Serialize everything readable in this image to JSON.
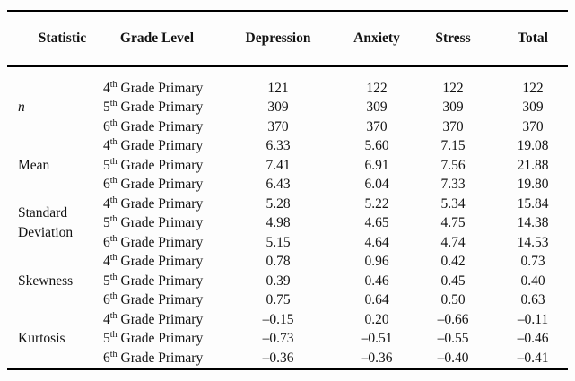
{
  "table": {
    "columns": {
      "statistic": "Statistic",
      "grade_level": "Grade Level",
      "depression": "Depression",
      "anxiety": "Anxiety",
      "stress": "Stress",
      "total": "Total"
    },
    "stat_labels": {
      "n": "n",
      "mean": "Mean",
      "sd": "Standard Deviation",
      "skewness": "Skewness",
      "kurtosis": "Kurtosis"
    },
    "grade_levels": [
      {
        "num": "4",
        "sup": "th",
        "rest": "Grade Primary"
      },
      {
        "num": "5",
        "sup": "th",
        "rest": "Grade Primary"
      },
      {
        "num": "6",
        "sup": "th",
        "rest": "Grade Primary"
      }
    ],
    "rows": [
      {
        "depression": "121",
        "anxiety": "122",
        "stress": "122",
        "total": "122"
      },
      {
        "depression": "309",
        "anxiety": "309",
        "stress": "309",
        "total": "309"
      },
      {
        "depression": "370",
        "anxiety": "370",
        "stress": "370",
        "total": "370"
      },
      {
        "depression": "6.33",
        "anxiety": "5.60",
        "stress": "7.15",
        "total": "19.08"
      },
      {
        "depression": "7.41",
        "anxiety": "6.91",
        "stress": "7.56",
        "total": "21.88"
      },
      {
        "depression": "6.43",
        "anxiety": "6.04",
        "stress": "7.33",
        "total": "19.80"
      },
      {
        "depression": "5.28",
        "anxiety": "5.22",
        "stress": "5.34",
        "total": "15.84"
      },
      {
        "depression": "4.98",
        "anxiety": "4.65",
        "stress": "4.75",
        "total": "14.38"
      },
      {
        "depression": "5.15",
        "anxiety": "4.64",
        "stress": "4.74",
        "total": "14.53"
      },
      {
        "depression": "0.78",
        "anxiety": "0.96",
        "stress": "0.42",
        "total": "0.73"
      },
      {
        "depression": "0.39",
        "anxiety": "0.46",
        "stress": "0.45",
        "total": "0.40"
      },
      {
        "depression": "0.75",
        "anxiety": "0.64",
        "stress": "0.50",
        "total": "0.63"
      },
      {
        "depression": "–0.15",
        "anxiety": "0.20",
        "stress": "–0.66",
        "total": "–0.11"
      },
      {
        "depression": "–0.73",
        "anxiety": "–0.51",
        "stress": "–0.55",
        "total": "–0.46"
      },
      {
        "depression": "–0.36",
        "anxiety": "–0.36",
        "stress": "–0.40",
        "total": "–0.41"
      }
    ],
    "colors": {
      "rule": "#000000",
      "text": "#121212",
      "background": "#fdfdfd"
    }
  }
}
